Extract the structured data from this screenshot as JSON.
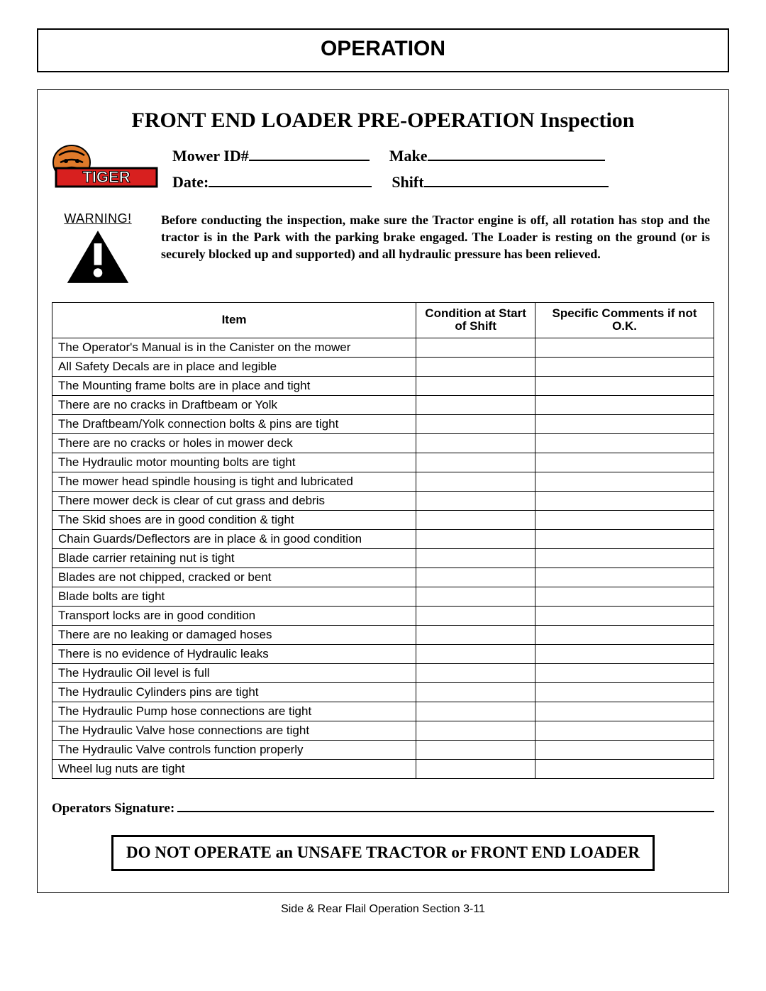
{
  "page": {
    "section_title": "OPERATION",
    "sub_title": "FRONT END LOADER PRE-OPERATION Inspection",
    "footer_ref": "Side & Rear Flail Operation Section   3-11"
  },
  "logo": {
    "brand": "Tiger",
    "bar_color": "#d8201f",
    "outline_color": "#000000"
  },
  "meta": {
    "mower_id_label": "Mower ID#",
    "make_label": "Make",
    "date_label": "Date:",
    "shift_label": "Shift",
    "blank_widths": {
      "mower_id": 170,
      "make": 250,
      "date": 230,
      "shift": 260
    }
  },
  "warning": {
    "label": "WARNING!",
    "text": "Before conducting the inspection, make sure  the Tractor engine is off, all rotation has stop and the tractor is in the Park with the parking brake engaged.   The Loader is resting on the ground (or is securely blocked up and supported)  and all hydraulic pressure has been relieved."
  },
  "checklist": {
    "columns": [
      "Item",
      "Condition at Start of Shift",
      "Specific Comments if not O.K."
    ],
    "items": [
      "The Operator's Manual is in the Canister on the mower",
      "All Safety Decals are in place and legible",
      "The Mounting frame bolts are in place and tight",
      "There are no cracks in Draftbeam or Yolk",
      "The Draftbeam/Yolk connection bolts & pins are tight",
      "There are no cracks or holes in mower deck",
      "The Hydraulic motor mounting bolts are tight",
      "The mower head spindle housing is tight and lubricated",
      "There mower deck is clear of cut grass and debris",
      "The Skid shoes are in good condition & tight",
      "Chain Guards/Deflectors are in place & in good condition",
      "Blade carrier retaining nut is tight",
      "Blades are not chipped, cracked or bent",
      "Blade bolts are tight",
      "Transport locks are in good condition",
      "There are no leaking or damaged hoses",
      "There is no evidence of Hydraulic leaks",
      "The Hydraulic Oil level is full",
      "The Hydraulic Cylinders pins are tight",
      "The Hydraulic Pump hose connections are tight",
      "The Hydraulic Valve hose connections are tight",
      "The Hydraulic Valve controls function properly",
      "Wheel lug nuts are tight"
    ]
  },
  "signature": {
    "label": "Operators Signature:"
  },
  "footer_box": {
    "text": "DO NOT OPERATE an UNSAFE TRACTOR or FRONT END LOADER"
  }
}
